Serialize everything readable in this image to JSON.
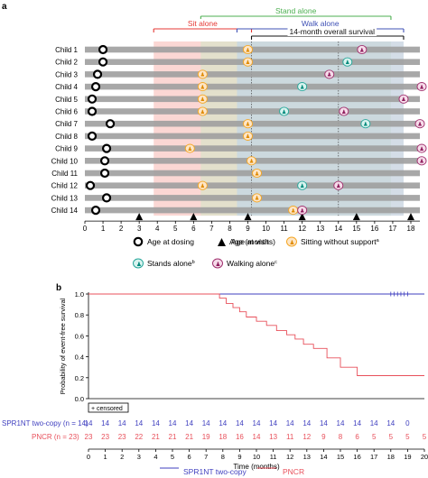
{
  "panel_a": {
    "panel_label": "a",
    "timeline_brackets": [
      {
        "label": "Stand alone",
        "color": "#4caf50"
      },
      {
        "label": "Sit alone",
        "color": "#e53935"
      },
      {
        "label": "Walk alone",
        "color": "#3f51b5"
      },
      {
        "label": "14-month overall survival",
        "color": "#111111"
      }
    ],
    "legend": {
      "dosing": "Age at dosing",
      "visit": "Age at visit",
      "sitting": "Sitting without support",
      "sitting_note": "a",
      "stands": "Stands alone",
      "stands_note": "b",
      "walking": "Walking alone",
      "walking_note": "c"
    }
  },
  "panel_b": {
    "panel_label": "b",
    "censored_label": "+ censored",
    "at_risk_label_1": "SPR1NT two-copy (n = 14)",
    "at_risk_label_2": "PNCR (n = 23)",
    "legend_series_1": "SPR1NT two-copy",
    "legend_series_2": "PNCR"
  },
  "chart_data": [
    {
      "type": "scatter",
      "title": "",
      "xlabel": "Age (months)",
      "ylabel": "",
      "xlim": [
        0,
        18.5
      ],
      "x_ticks": [
        0,
        1,
        2,
        3,
        4,
        5,
        6,
        7,
        8,
        9,
        10,
        11,
        12,
        13,
        14,
        15,
        16,
        17,
        18
      ],
      "categories": [
        "Child 1",
        "Child 2",
        "Child 3",
        "Child 4",
        "Child 5",
        "Child 6",
        "Child 7",
        "Child 8",
        "Child 9",
        "Child 10",
        "Child 11",
        "Child 12",
        "Child 13",
        "Child 14"
      ],
      "bar_end": [
        18.5,
        18.5,
        18.5,
        18.5,
        18.5,
        18.5,
        18.5,
        18.5,
        18.5,
        18.5,
        18.5,
        18.5,
        18.5,
        18.5
      ],
      "shaded_windows": [
        {
          "label": "Sit alone",
          "range": [
            3.8,
            9.2
          ],
          "color": "#f7b7b0"
        },
        {
          "label": "Stand alone",
          "range": [
            6.4,
            16.9
          ],
          "color": "#cfe8c5"
        },
        {
          "label": "Walk alone",
          "range": [
            8.4,
            17.6
          ],
          "color": "#b9d3ee"
        },
        {
          "label": "14-month overall survival",
          "range": [
            9.2,
            17.6
          ],
          "color": "#cccccc"
        }
      ],
      "dotted_lines": [
        9.2,
        14
      ],
      "age_at_visit": [
        3,
        6,
        9,
        12,
        15,
        18
      ],
      "series": [
        {
          "name": "Age at dosing",
          "values": [
            1.0,
            1.0,
            0.7,
            0.6,
            0.4,
            0.4,
            1.4,
            0.4,
            1.2,
            1.1,
            1.1,
            0.3,
            1.2,
            0.6
          ]
        },
        {
          "name": "Sitting without support",
          "values": [
            9.0,
            9.0,
            6.5,
            6.5,
            6.5,
            6.5,
            9.0,
            9.0,
            5.8,
            9.2,
            9.5,
            6.5,
            9.5,
            11.5
          ]
        },
        {
          "name": "Stands alone",
          "values": [
            null,
            14.5,
            null,
            12.0,
            null,
            11.0,
            15.5,
            null,
            null,
            null,
            null,
            12.0,
            null,
            null
          ]
        },
        {
          "name": "Walking alone",
          "values": [
            15.3,
            null,
            13.5,
            18.6,
            17.6,
            14.3,
            18.5,
            null,
            18.6,
            18.6,
            null,
            14.0,
            null,
            12.0
          ]
        }
      ]
    },
    {
      "type": "line",
      "title": "",
      "xlabel": "Time (months)",
      "ylabel": "Probability of event-free survival",
      "xlim": [
        0,
        20
      ],
      "ylim": [
        0,
        1.0
      ],
      "x_ticks": [
        0,
        1,
        2,
        3,
        4,
        5,
        6,
        7,
        8,
        9,
        10,
        11,
        12,
        13,
        14,
        15,
        16,
        17,
        18,
        19,
        20
      ],
      "y_ticks": [
        0,
        0.2,
        0.4,
        0.6,
        0.8,
        1.0
      ],
      "series": [
        {
          "name": "SPR1NT two-copy",
          "color": "#3f3fbf",
          "x": [
            0,
            20
          ],
          "y": [
            1.0,
            1.0
          ],
          "censored": [
            18.0,
            18.2,
            18.4,
            18.6,
            18.8,
            19.0
          ]
        },
        {
          "name": "PNCR",
          "color": "#e8505b",
          "x": [
            0,
            7.8,
            7.8,
            8.2,
            8.2,
            8.6,
            8.6,
            9.0,
            9.0,
            9.4,
            9.4,
            10.0,
            10.0,
            10.6,
            10.6,
            11.2,
            11.2,
            11.8,
            11.8,
            12.3,
            12.3,
            12.8,
            12.8,
            13.4,
            13.4,
            14.2,
            14.2,
            15.0,
            15.0,
            16.0,
            16.0,
            20
          ],
          "y": [
            1.0,
            1.0,
            0.96,
            0.96,
            0.91,
            0.91,
            0.87,
            0.87,
            0.83,
            0.83,
            0.78,
            0.78,
            0.74,
            0.74,
            0.7,
            0.7,
            0.65,
            0.65,
            0.61,
            0.61,
            0.57,
            0.57,
            0.52,
            0.52,
            0.48,
            0.48,
            0.39,
            0.39,
            0.3,
            0.3,
            0.22,
            0.22
          ]
        }
      ],
      "at_risk_times": [
        0,
        1,
        2,
        3,
        4,
        5,
        6,
        7,
        8,
        9,
        10,
        11,
        12,
        13,
        14,
        15,
        16,
        17,
        18,
        19,
        20
      ],
      "at_risk_spr1nt": [
        "14",
        "14",
        "14",
        "14",
        "14",
        "14",
        "14",
        "14",
        "14",
        "14",
        "14",
        "14",
        "14",
        "14",
        "14",
        "14",
        "14",
        "14",
        "14",
        "0",
        ""
      ],
      "at_risk_pncr": [
        "23",
        "23",
        "23",
        "22",
        "21",
        "21",
        "21",
        "19",
        "18",
        "16",
        "14",
        "13",
        "11",
        "12",
        "9",
        "8",
        "6",
        "5",
        "5",
        "5",
        "5"
      ]
    }
  ]
}
